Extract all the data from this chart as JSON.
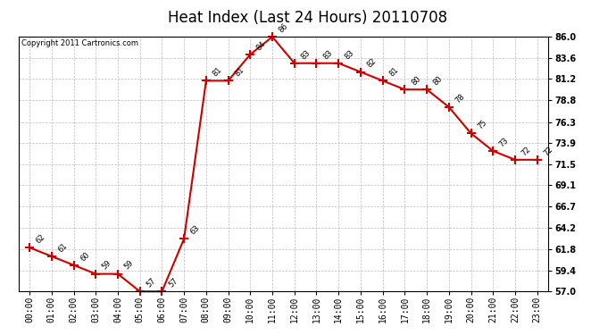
{
  "title": "Heat Index (Last 24 Hours) 20110708",
  "copyright": "Copyright 2011 Cartronics.com",
  "hours": [
    "00:00",
    "01:00",
    "02:00",
    "03:00",
    "04:00",
    "05:00",
    "06:00",
    "07:00",
    "08:00",
    "09:00",
    "10:00",
    "11:00",
    "12:00",
    "13:00",
    "14:00",
    "15:00",
    "16:00",
    "17:00",
    "18:00",
    "19:00",
    "20:00",
    "21:00",
    "22:00",
    "23:00"
  ],
  "values": [
    62,
    61,
    60,
    59,
    59,
    57,
    57,
    63,
    81,
    81,
    84,
    86,
    83,
    83,
    83,
    82,
    81,
    80,
    80,
    78,
    75,
    73,
    72,
    72
  ],
  "ylim": [
    57.0,
    86.0
  ],
  "yticks": [
    57.0,
    59.4,
    61.8,
    64.2,
    66.7,
    69.1,
    71.5,
    73.9,
    76.3,
    78.8,
    81.2,
    83.6,
    86.0
  ],
  "line_color": "#cc0000",
  "marker": "+",
  "marker_color": "#cc0000",
  "bg_color": "#ffffff",
  "grid_color": "#bbbbbb",
  "title_fontsize": 12,
  "label_fontsize": 7,
  "annot_fontsize": 6,
  "copyright_fontsize": 6
}
